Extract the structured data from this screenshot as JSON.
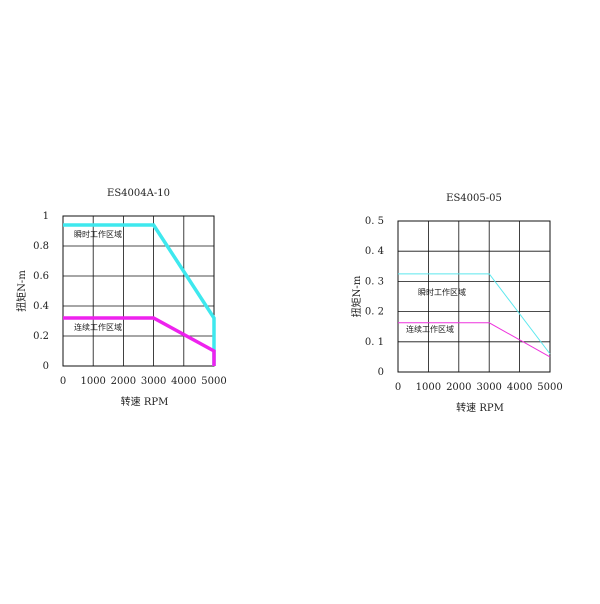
{
  "chart_data": [
    {
      "type": "line",
      "title": "ES4004A-10",
      "xlabel": "转速 RPM",
      "ylabel": "扭矩N-m",
      "xlim": [
        0,
        5000
      ],
      "ylim": [
        0,
        1
      ],
      "xticks": [
        0,
        1000,
        2000,
        3000,
        4000,
        5000
      ],
      "yticks": [
        0,
        0.2,
        0.4,
        0.6,
        0.8,
        1
      ],
      "ytick_labels": [
        "0",
        "0.2",
        "0.4",
        "0.6",
        "0.8",
        "1"
      ],
      "grid": true,
      "series": [
        {
          "name": "瞬时工作区域",
          "color": "#3ee8ee",
          "style": "thick",
          "x": [
            0,
            3000,
            5000,
            5000
          ],
          "y": [
            0.94,
            0.94,
            0.32,
            0
          ]
        },
        {
          "name": "连续工作区域",
          "color": "#ee22ee",
          "style": "thick",
          "x": [
            0,
            3000,
            5000,
            5000
          ],
          "y": [
            0.32,
            0.32,
            0.1,
            0
          ]
        }
      ]
    },
    {
      "type": "line",
      "title": "ES4005-05",
      "xlabel": "转速 RPM",
      "ylabel": "扭矩N-m",
      "xlim": [
        0,
        5000
      ],
      "ylim": [
        0,
        0.5
      ],
      "xticks": [
        0,
        1000,
        2000,
        3000,
        4000,
        5000
      ],
      "yticks": [
        0,
        0.1,
        0.2,
        0.3,
        0.4,
        0.5
      ],
      "ytick_labels": [
        "0",
        "0. 1",
        "0. 2",
        "0. 3",
        "0. 4",
        "0. 5"
      ],
      "grid": true,
      "series": [
        {
          "name": "瞬时工作区域",
          "color": "#5ce8ee",
          "style": "thin",
          "x": [
            0,
            3000,
            5000
          ],
          "y": [
            0.325,
            0.325,
            0.06
          ]
        },
        {
          "name": "连续工作区域",
          "color": "#ee33dd",
          "style": "thin",
          "x": [
            0,
            3000,
            5000
          ],
          "y": [
            0.163,
            0.163,
            0.05
          ]
        }
      ]
    }
  ]
}
